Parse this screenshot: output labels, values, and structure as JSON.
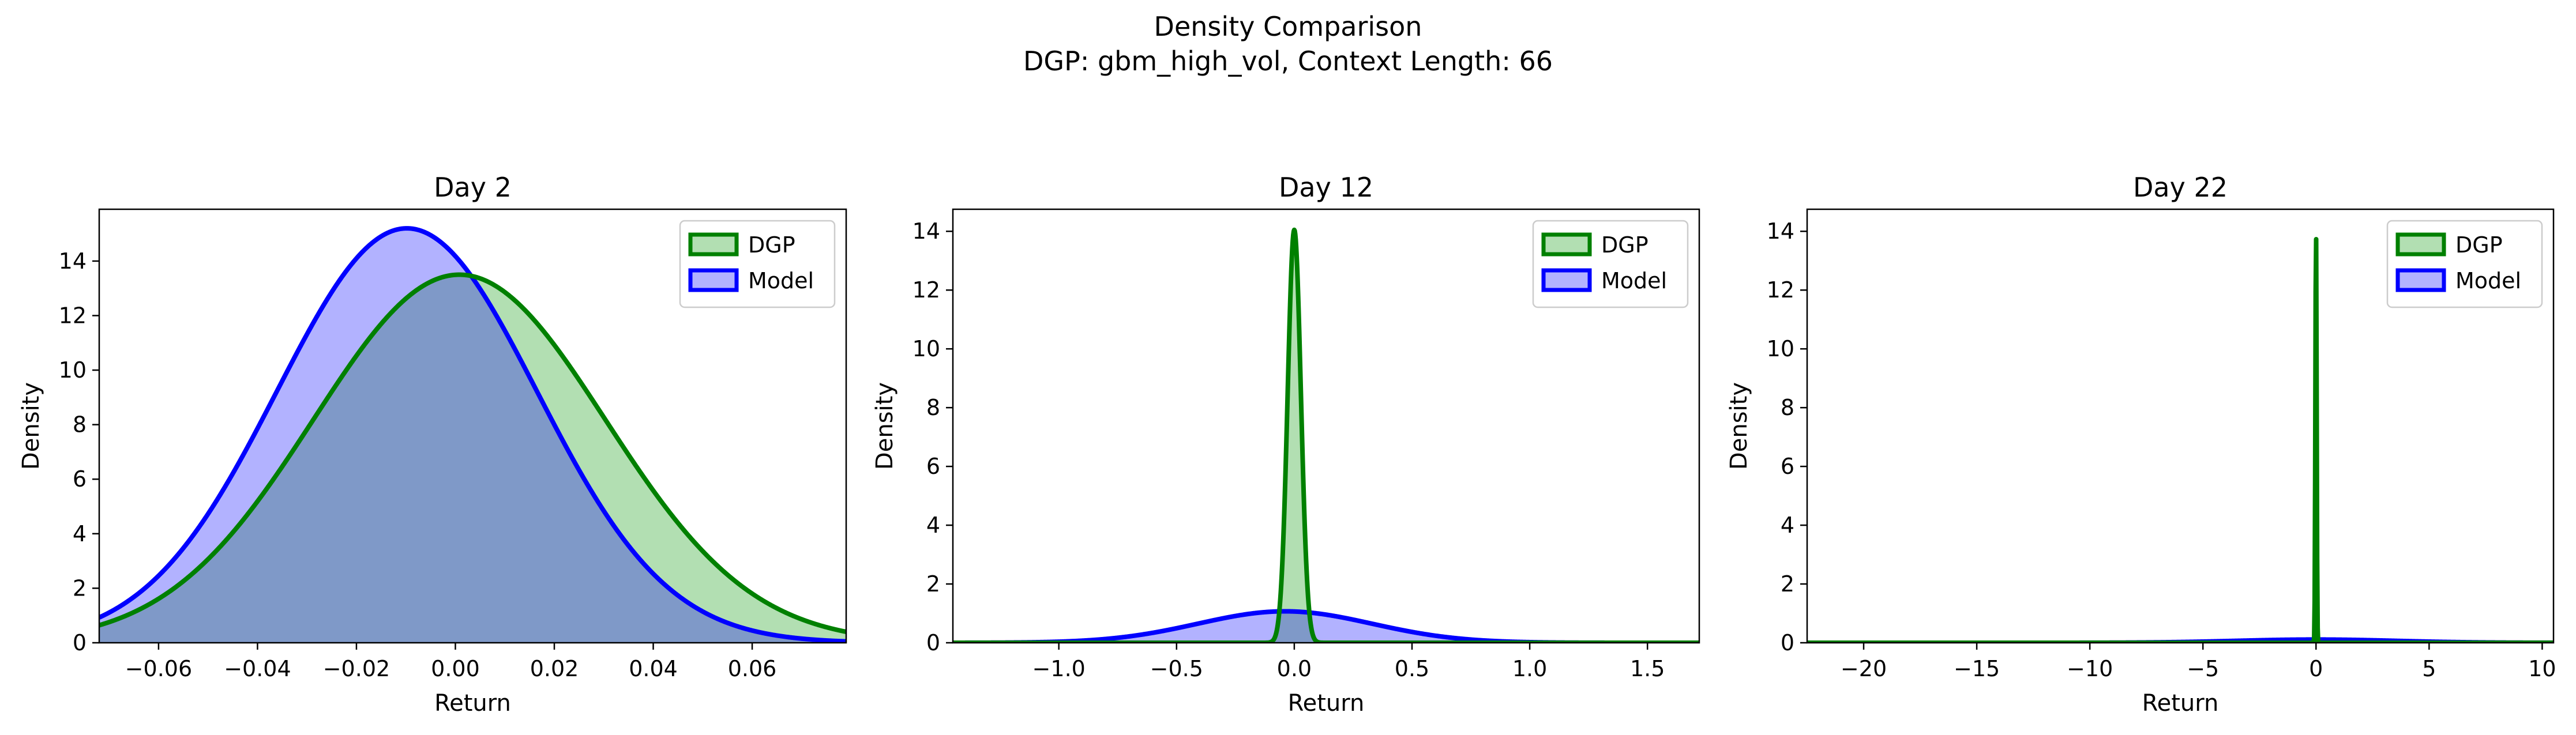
{
  "figure": {
    "title": "Density Comparison",
    "subtitle": "DGP: gbm_high_vol, Context Length: 66"
  },
  "chart_data": [
    {
      "type": "area",
      "title": "Day 2",
      "xlabel": "Return",
      "ylabel": "Density",
      "xlim": [
        -0.072,
        0.079
      ],
      "ylim": [
        0,
        15.9
      ],
      "xticks": [
        -0.06,
        -0.04,
        -0.02,
        0.0,
        0.02,
        0.04,
        0.06
      ],
      "xtick_labels": [
        "−0.06",
        "−0.04",
        "−0.02",
        "0.00",
        "0.02",
        "0.04",
        "0.06"
      ],
      "yticks": [
        0,
        2,
        4,
        6,
        8,
        10,
        12,
        14
      ],
      "ytick_labels": [
        "0",
        "2",
        "4",
        "6",
        "8",
        "10",
        "12",
        "14"
      ],
      "legend_position": "top-right",
      "series": [
        {
          "name": "DGP",
          "color": "#008000",
          "fill": "#b2dfb2",
          "dist": "gaussian",
          "mean": 0.0008,
          "sd": 0.0295,
          "peak": 13.5
        },
        {
          "name": "Model",
          "color": "#0000ff",
          "fill": "#b2b2ff",
          "dist": "gaussian",
          "mean": -0.0098,
          "sd": 0.0263,
          "peak": 15.2
        }
      ],
      "overlap_fill": "#7f99c8"
    },
    {
      "type": "area",
      "title": "Day 12",
      "xlabel": "Return",
      "ylabel": "Density",
      "xlim": [
        -1.45,
        1.72
      ],
      "ylim": [
        0,
        14.75
      ],
      "xticks": [
        -1.0,
        -0.5,
        0.0,
        0.5,
        1.0,
        1.5
      ],
      "xtick_labels": [
        "−1.0",
        "−0.5",
        "0.0",
        "0.5",
        "1.0",
        "1.5"
      ],
      "yticks": [
        0,
        2,
        4,
        6,
        8,
        10,
        12,
        14
      ],
      "ytick_labels": [
        "0",
        "2",
        "4",
        "6",
        "8",
        "10",
        "12",
        "14"
      ],
      "legend_position": "top-right",
      "series": [
        {
          "name": "DGP",
          "color": "#008000",
          "fill": "#b2dfb2",
          "dist": "gaussian",
          "mean": 0.0,
          "sd": 0.028,
          "peak": 14.05
        },
        {
          "name": "Model",
          "color": "#0000ff",
          "fill": "#b2b2ff",
          "dist": "gaussian",
          "mean": -0.04,
          "sd": 0.37,
          "peak": 1.07
        }
      ],
      "overlap_fill": "#7f99c8"
    },
    {
      "type": "area",
      "title": "Day 22",
      "xlabel": "Return",
      "ylabel": "Density",
      "xlim": [
        -22.5,
        10.5
      ],
      "ylim": [
        0,
        14.75
      ],
      "xticks": [
        -20,
        -15,
        -10,
        -5,
        0,
        5,
        10
      ],
      "xtick_labels": [
        "−20",
        "−15",
        "−10",
        "−5",
        "0",
        "5",
        "10"
      ],
      "yticks": [
        0,
        2,
        4,
        6,
        8,
        10,
        12,
        14
      ],
      "ytick_labels": [
        "0",
        "2",
        "4",
        "6",
        "8",
        "10",
        "12",
        "14"
      ],
      "legend_position": "top-right",
      "series": [
        {
          "name": "DGP",
          "color": "#008000",
          "fill": "#b2dfb2",
          "dist": "gaussian",
          "mean": 0.0,
          "sd": 0.028,
          "peak": 14.05
        },
        {
          "name": "Model",
          "color": "#0000ff",
          "fill": "#b2b2ff",
          "dist": "gaussian",
          "mean": 0.0,
          "sd": 3.5,
          "peak": 0.11
        }
      ],
      "overlap_fill": "#7f99c8"
    }
  ]
}
